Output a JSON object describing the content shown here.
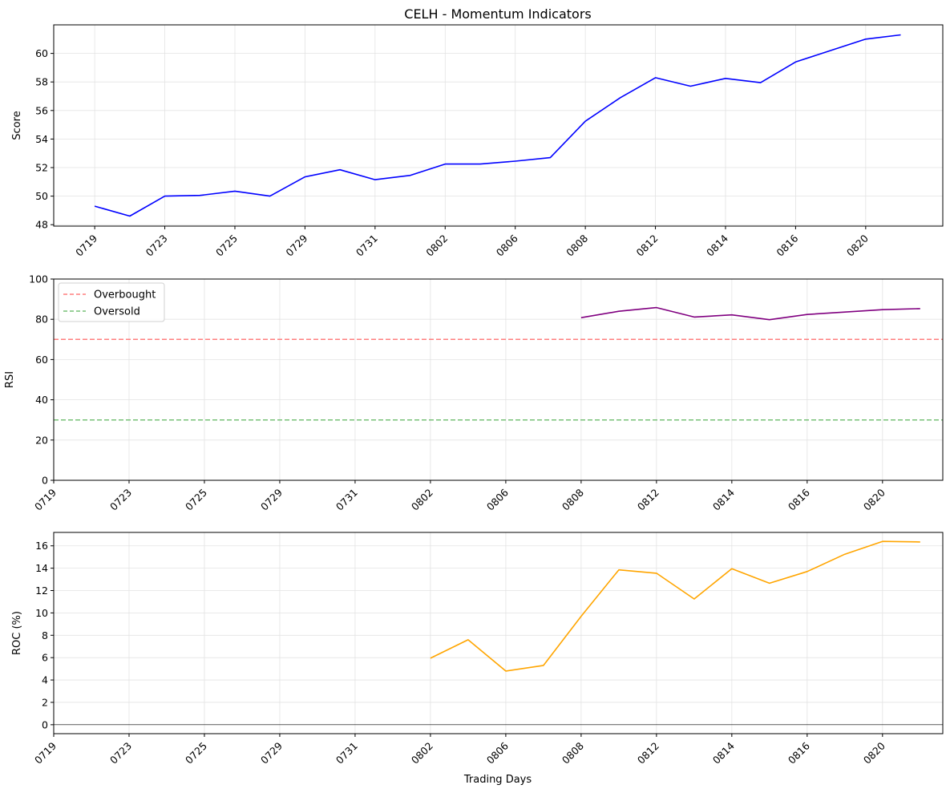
{
  "figure": {
    "title": "CELH - Momentum Indicators",
    "xlabel": "Trading Days"
  },
  "chart_data": [
    {
      "type": "line",
      "title": "CELH - Momentum Indicators",
      "xlabel": "",
      "ylabel": "Score",
      "x": [
        "0719",
        "0722",
        "0723",
        "0724",
        "0725",
        "0726",
        "0729",
        "0730",
        "0731",
        "0801",
        "0802",
        "0805",
        "0806",
        "0807",
        "0808",
        "0809",
        "0812",
        "0813",
        "0814",
        "0815",
        "0816",
        "0819",
        "0820",
        "0821"
      ],
      "xticks": [
        "0719",
        "0723",
        "0725",
        "0729",
        "0731",
        "0802",
        "0806",
        "0808",
        "0812",
        "0814",
        "0816",
        "0820"
      ],
      "yticks": [
        48,
        50,
        52,
        54,
        56,
        58,
        60
      ],
      "ylim": [
        47.9,
        62.0
      ],
      "grid": true,
      "series": [
        {
          "color": "#0000ff",
          "values": [
            49.3,
            48.6,
            50.0,
            50.05,
            50.35,
            50.0,
            51.35,
            51.85,
            51.15,
            51.45,
            52.25,
            52.25,
            52.45,
            52.7,
            55.25,
            56.9,
            58.3,
            57.7,
            58.25,
            57.95,
            59.4,
            60.2,
            61.0,
            61.3
          ]
        }
      ]
    },
    {
      "type": "line",
      "xlabel": "",
      "ylabel": "RSI",
      "x": [
        "0719",
        "0722",
        "0723",
        "0724",
        "0725",
        "0726",
        "0729",
        "0730",
        "0731",
        "0801",
        "0802",
        "0805",
        "0806",
        "0807",
        "0808",
        "0809",
        "0812",
        "0813",
        "0814",
        "0815",
        "0816",
        "0819",
        "0820",
        "0821"
      ],
      "xticks": [
        "0719",
        "0723",
        "0725",
        "0729",
        "0731",
        "0802",
        "0806",
        "0808",
        "0812",
        "0814",
        "0816",
        "0820"
      ],
      "yticks": [
        0,
        20,
        40,
        60,
        80,
        100
      ],
      "ylim": [
        0,
        100
      ],
      "grid": true,
      "legend_position": "top-left",
      "series": [
        {
          "color": "#800080",
          "values": [
            null,
            null,
            null,
            null,
            null,
            null,
            null,
            null,
            null,
            null,
            null,
            null,
            null,
            null,
            80.8,
            84.0,
            85.8,
            81.1,
            82.2,
            79.8,
            82.4,
            83.6,
            84.8,
            85.3
          ]
        }
      ],
      "reference_lines": [
        {
          "name": "Overbought",
          "y": 70,
          "color": "#ff7f7f",
          "style": "dashed"
        },
        {
          "name": "Oversold",
          "y": 30,
          "color": "#77c077",
          "style": "dashed"
        }
      ]
    },
    {
      "type": "line",
      "xlabel": "Trading Days",
      "ylabel": "ROC (%)",
      "x": [
        "0719",
        "0722",
        "0723",
        "0724",
        "0725",
        "0726",
        "0729",
        "0730",
        "0731",
        "0801",
        "0802",
        "0805",
        "0806",
        "0807",
        "0808",
        "0809",
        "0812",
        "0813",
        "0814",
        "0815",
        "0816",
        "0819",
        "0820",
        "0821"
      ],
      "xticks": [
        "0719",
        "0723",
        "0725",
        "0729",
        "0731",
        "0802",
        "0806",
        "0808",
        "0812",
        "0814",
        "0816",
        "0820"
      ],
      "yticks": [
        0,
        2,
        4,
        6,
        8,
        10,
        12,
        14,
        16
      ],
      "ylim": [
        -0.8,
        17.2
      ],
      "grid": true,
      "zero_line": true,
      "series": [
        {
          "color": "#ffa500",
          "values": [
            null,
            null,
            null,
            null,
            null,
            null,
            null,
            null,
            null,
            null,
            5.95,
            7.6,
            4.8,
            5.3,
            9.7,
            13.85,
            13.55,
            11.25,
            13.95,
            12.65,
            13.7,
            15.25,
            16.4,
            16.35
          ]
        }
      ]
    }
  ]
}
